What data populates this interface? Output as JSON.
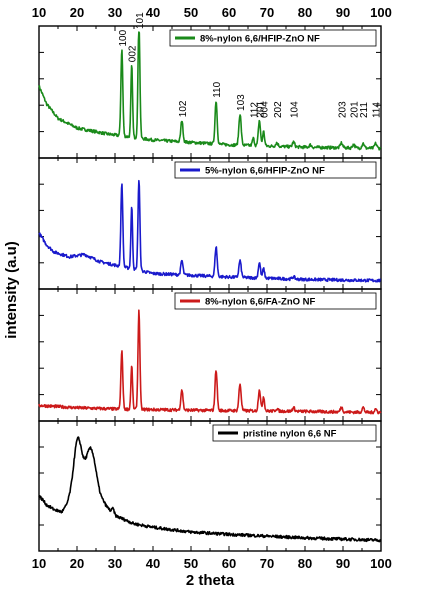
{
  "chart_data": {
    "type": "line",
    "xlabel": "2 theta",
    "ylabel": "intensity (a.u)",
    "xlim": [
      10,
      100
    ],
    "x_ticks": [
      "10",
      "20",
      "30",
      "40",
      "50",
      "60",
      "70",
      "80",
      "90",
      "100"
    ],
    "grid": false,
    "legend_placement": "top-right of each panel",
    "stacked_panels": true,
    "series": [
      {
        "name": "8%-nylon 6,6/HFIP-ZnO NF",
        "color": "#1a8a1a",
        "peak_labels": [
          {
            "x": 31.8,
            "text": "100"
          },
          {
            "x": 34.4,
            "text": "002"
          },
          {
            "x": 36.3,
            "text": "101"
          },
          {
            "x": 47.6,
            "text": "102"
          },
          {
            "x": 56.6,
            "text": "110"
          },
          {
            "x": 62.9,
            "text": "103"
          },
          {
            "x": 66.4,
            "text": "112"
          },
          {
            "x": 68.0,
            "text": "201"
          },
          {
            "x": 69.1,
            "text": "004"
          },
          {
            "x": 72.6,
            "text": "202"
          },
          {
            "x": 77.0,
            "text": "104"
          },
          {
            "x": 89.6,
            "text": "203"
          },
          {
            "x": 92.8,
            "text": "201"
          },
          {
            "x": 95.3,
            "text": "211"
          },
          {
            "x": 98.6,
            "text": "114"
          }
        ],
        "baseline": [
          [
            10,
            0.55
          ],
          [
            12,
            0.4
          ],
          [
            15,
            0.28
          ],
          [
            20,
            0.2
          ],
          [
            28,
            0.15
          ],
          [
            40,
            0.1
          ],
          [
            60,
            0.06
          ],
          [
            80,
            0.04
          ],
          [
            100,
            0.03
          ]
        ],
        "peaks": [
          [
            31.8,
            0.72,
            0.25
          ],
          [
            34.4,
            0.6,
            0.22
          ],
          [
            36.3,
            0.96,
            0.25
          ],
          [
            47.6,
            0.18,
            0.28
          ],
          [
            56.6,
            0.36,
            0.28
          ],
          [
            62.9,
            0.26,
            0.3
          ],
          [
            66.4,
            0.06,
            0.25
          ],
          [
            68.0,
            0.21,
            0.28
          ],
          [
            69.1,
            0.12,
            0.25
          ],
          [
            72.6,
            0.03,
            0.3
          ],
          [
            77.0,
            0.04,
            0.3
          ],
          [
            81.4,
            0.02,
            0.3
          ],
          [
            89.6,
            0.04,
            0.3
          ],
          [
            92.8,
            0.03,
            0.3
          ],
          [
            95.3,
            0.04,
            0.3
          ],
          [
            98.6,
            0.04,
            0.3
          ]
        ]
      },
      {
        "name": "5%-nylon 6,6/HFIP-ZnO NF",
        "color": "#1a1acc",
        "baseline": [
          [
            10,
            0.42
          ],
          [
            12,
            0.32
          ],
          [
            14,
            0.26
          ],
          [
            18,
            0.22
          ],
          [
            22,
            0.24
          ],
          [
            26,
            0.18
          ],
          [
            30,
            0.15
          ],
          [
            40,
            0.08
          ],
          [
            60,
            0.05
          ],
          [
            80,
            0.03
          ],
          [
            100,
            0.02
          ]
        ],
        "peaks": [
          [
            31.8,
            0.7,
            0.25
          ],
          [
            34.4,
            0.52,
            0.22
          ],
          [
            36.3,
            0.76,
            0.25
          ],
          [
            47.6,
            0.12,
            0.28
          ],
          [
            56.6,
            0.25,
            0.28
          ],
          [
            62.9,
            0.14,
            0.3
          ],
          [
            68.0,
            0.13,
            0.28
          ],
          [
            69.1,
            0.08,
            0.25
          ],
          [
            77.0,
            0.02,
            0.3
          ]
        ]
      },
      {
        "name": "8%-nylon 6,6/FA-ZnO NF",
        "color": "#cc1a1a",
        "baseline": [
          [
            10,
            0.08
          ],
          [
            15,
            0.07
          ],
          [
            20,
            0.06
          ],
          [
            30,
            0.05
          ],
          [
            50,
            0.04
          ],
          [
            80,
            0.03
          ],
          [
            100,
            0.02
          ]
        ],
        "peaks": [
          [
            31.8,
            0.48,
            0.25
          ],
          [
            34.4,
            0.36,
            0.22
          ],
          [
            36.3,
            0.82,
            0.25
          ],
          [
            47.6,
            0.17,
            0.28
          ],
          [
            56.6,
            0.34,
            0.28
          ],
          [
            62.9,
            0.22,
            0.3
          ],
          [
            68.0,
            0.18,
            0.28
          ],
          [
            69.1,
            0.12,
            0.25
          ],
          [
            72.6,
            0.02,
            0.3
          ],
          [
            77.0,
            0.03,
            0.3
          ],
          [
            89.6,
            0.04,
            0.3
          ],
          [
            95.3,
            0.04,
            0.3
          ],
          [
            98.6,
            0.03,
            0.3
          ]
        ]
      },
      {
        "name": "pristine nylon 6,6 NF",
        "color": "#000000",
        "baseline": [
          [
            10,
            0.42
          ],
          [
            12,
            0.34
          ],
          [
            14,
            0.3
          ],
          [
            16,
            0.28
          ],
          [
            18,
            0.36
          ],
          [
            27,
            0.35
          ],
          [
            30,
            0.25
          ],
          [
            35,
            0.18
          ],
          [
            40,
            0.15
          ],
          [
            50,
            0.11
          ],
          [
            60,
            0.09
          ],
          [
            80,
            0.06
          ],
          [
            100,
            0.04
          ]
        ],
        "peaks": [
          [
            20.2,
            0.52,
            1.1
          ],
          [
            23.6,
            0.46,
            1.4
          ],
          [
            29.5,
            0.04,
            0.3
          ]
        ]
      }
    ]
  }
}
